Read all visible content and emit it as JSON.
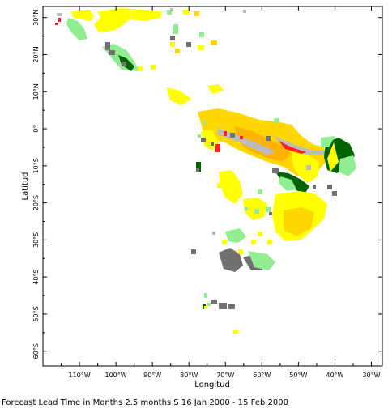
{
  "map": {
    "x_axis": {
      "title": "Longitud",
      "ticks": [
        {
          "value": -110,
          "label": "110°W"
        },
        {
          "value": -100,
          "label": "100°W"
        },
        {
          "value": -90,
          "label": "90°W"
        },
        {
          "value": -80,
          "label": "80°W"
        },
        {
          "value": -70,
          "label": "70°W"
        },
        {
          "value": -60,
          "label": "60°W"
        },
        {
          "value": -50,
          "label": "50°W"
        },
        {
          "value": -40,
          "label": "40°W"
        },
        {
          "value": -30,
          "label": "30°W"
        }
      ],
      "range": [
        -120,
        -27
      ]
    },
    "y_axis": {
      "title": "Latitud",
      "ticks": [
        {
          "value": 30,
          "label": "30°N"
        },
        {
          "value": 20,
          "label": "20°N"
        },
        {
          "value": 10,
          "label": "10°N"
        },
        {
          "value": 0,
          "label": "0°"
        },
        {
          "value": -10,
          "label": "10°S"
        },
        {
          "value": -20,
          "label": "20°S"
        },
        {
          "value": -30,
          "label": "30°S"
        },
        {
          "value": -40,
          "label": "40°S"
        },
        {
          "value": -50,
          "label": "50°S"
        },
        {
          "value": -60,
          "label": "60°S"
        }
      ],
      "range": [
        -64,
        33
      ]
    },
    "caption": "Forecast Lead Time in Months 2.5 months S 16 Jan 2000 - 15 Feb 2000",
    "colors": {
      "yellow": "#ffff00",
      "gold": "#ffd700",
      "orange": "#ffb300",
      "red": "#ff2020",
      "light_green": "#90ee90",
      "dark_green": "#006400",
      "gray": "#707070",
      "light_gray": "#bcbcbc"
    }
  }
}
